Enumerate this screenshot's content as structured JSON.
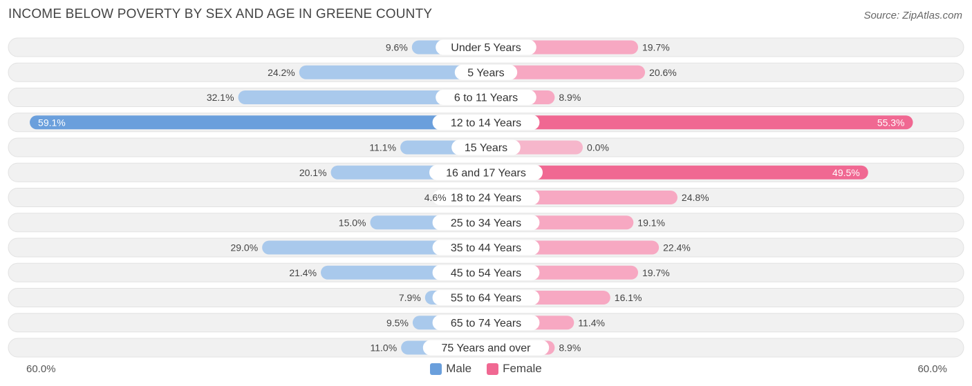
{
  "title": "INCOME BELOW POVERTY BY SEX AND AGE IN GREENE COUNTY",
  "source": "Source: ZipAtlas.com",
  "axis": {
    "left_label": "60.0%",
    "right_label": "60.0%"
  },
  "legend": {
    "male_label": "Male",
    "female_label": "Female"
  },
  "colors": {
    "male_strong": "#6a9fdc",
    "male_light": "#a9c9ec",
    "female_strong": "#f06892",
    "female_light": "#f7a8c2",
    "row_bg": "#f1f1f1"
  },
  "chart_data": {
    "type": "bar",
    "orientation": "horizontal-diverging",
    "categories": [
      "Under 5 Years",
      "5 Years",
      "6 to 11 Years",
      "12 to 14 Years",
      "15 Years",
      "16 and 17 Years",
      "18 to 24 Years",
      "25 to 34 Years",
      "35 to 44 Years",
      "45 to 54 Years",
      "55 to 64 Years",
      "65 to 74 Years",
      "75 Years and over"
    ],
    "series": [
      {
        "name": "Male",
        "values": [
          9.6,
          24.2,
          32.1,
          59.1,
          11.1,
          20.1,
          4.6,
          15.0,
          29.0,
          21.4,
          7.9,
          9.5,
          11.0
        ],
        "labels": [
          "9.6%",
          "24.2%",
          "32.1%",
          "59.1%",
          "11.1%",
          "20.1%",
          "4.6%",
          "15.0%",
          "29.0%",
          "21.4%",
          "7.9%",
          "9.5%",
          "11.0%"
        ]
      },
      {
        "name": "Female",
        "values": [
          19.7,
          20.6,
          8.9,
          55.3,
          0.0,
          49.5,
          24.8,
          19.1,
          22.4,
          19.7,
          16.1,
          11.4,
          8.9
        ],
        "labels": [
          "19.7%",
          "20.6%",
          "8.9%",
          "55.3%",
          "0.0%",
          "49.5%",
          "24.8%",
          "19.1%",
          "22.4%",
          "19.7%",
          "16.1%",
          "11.4%",
          "8.9%"
        ]
      }
    ],
    "xlim": [
      -60,
      60
    ],
    "title": "INCOME BELOW POVERTY BY SEX AND AGE IN GREENE COUNTY",
    "legend_position": "bottom-center"
  }
}
